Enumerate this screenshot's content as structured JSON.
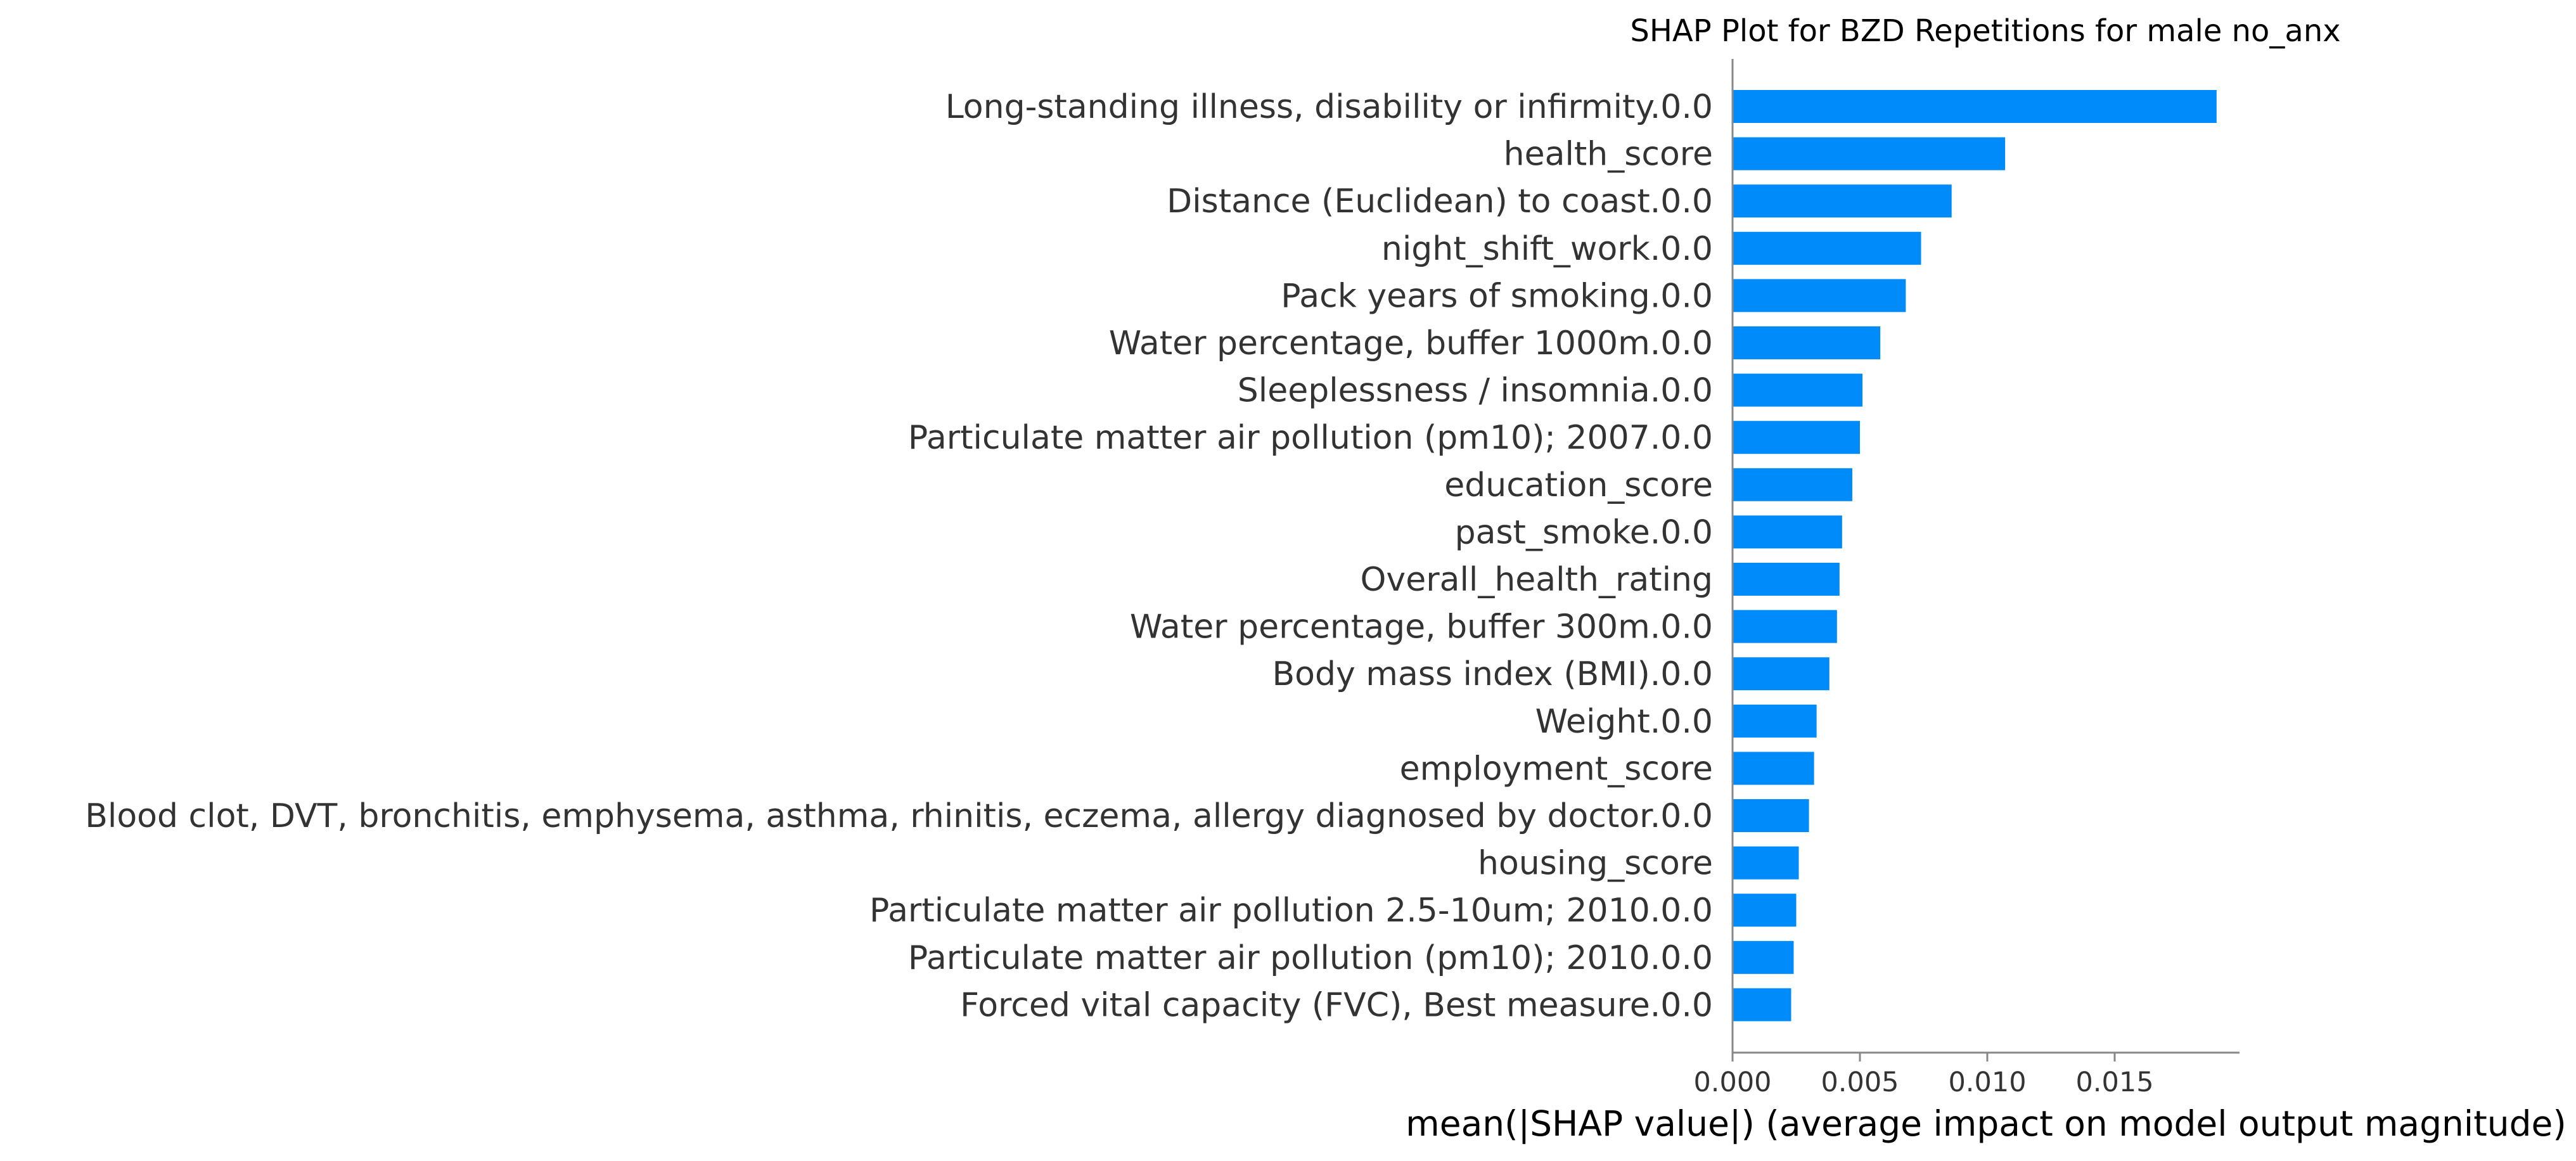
{
  "chart_data": {
    "type": "bar",
    "orientation": "horizontal",
    "title": "SHAP Plot for BZD Repetitions for male no_anx",
    "xlabel": "mean(|SHAP value|) (average impact on model output magnitude)",
    "ylabel": "",
    "xlim": [
      0.0,
      0.0199
    ],
    "xticks": [
      0.0,
      0.005,
      0.01,
      0.015
    ],
    "xtick_labels": [
      "0.000",
      "0.005",
      "0.010",
      "0.015"
    ],
    "grid": false,
    "legend": "none",
    "bar_color": "#008bfb",
    "categories": [
      "Long-standing illness, disability or infirmity.0.0",
      "health_score",
      "Distance (Euclidean) to coast.0.0",
      "night_shift_work.0.0",
      "Pack years of smoking.0.0",
      "Water percentage, buffer 1000m.0.0",
      "Sleeplessness / insomnia.0.0",
      "Particulate matter air pollution (pm10); 2007.0.0",
      "education_score",
      "past_smoke.0.0",
      "Overall_health_rating",
      "Water percentage, buffer 300m.0.0",
      "Body mass index (BMI).0.0",
      "Weight.0.0",
      "employment_score",
      "Blood clot, DVT, bronchitis, emphysema, asthma, rhinitis, eczema, allergy diagnosed by doctor.0.0",
      "housing_score",
      "Particulate matter air pollution 2.5-10um; 2010.0.0",
      "Particulate matter air pollution (pm10); 2010.0.0",
      "Forced vital capacity (FVC), Best measure.0.0"
    ],
    "values": [
      0.019,
      0.0107,
      0.0086,
      0.0074,
      0.0068,
      0.0058,
      0.0051,
      0.005,
      0.0047,
      0.0043,
      0.0042,
      0.0041,
      0.0038,
      0.0033,
      0.0032,
      0.003,
      0.0026,
      0.0025,
      0.0024,
      0.0023
    ]
  }
}
